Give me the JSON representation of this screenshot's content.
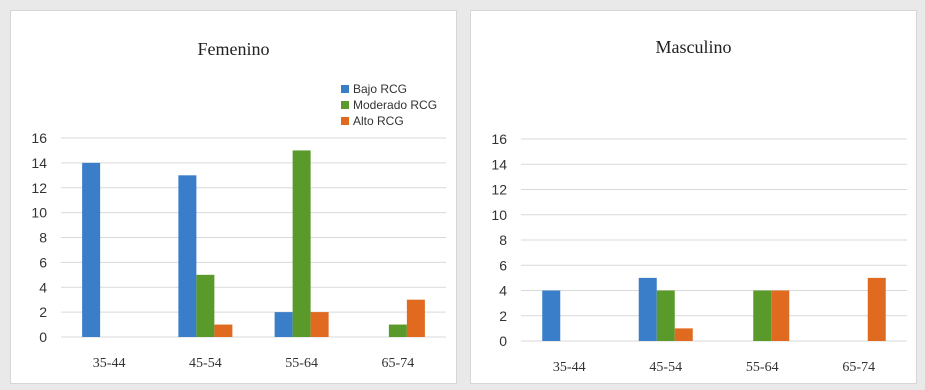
{
  "colors": {
    "bajo": "#3a7dc9",
    "moderado": "#5a9a2a",
    "alto": "#e06a1f",
    "grid": "#d9d9d9"
  },
  "chart_data": [
    {
      "type": "bar",
      "title": "Femenino",
      "categories": [
        "35-44",
        "45-54",
        "55-64",
        "65-74"
      ],
      "ylim": [
        0,
        16
      ],
      "yticks": [
        0,
        2,
        4,
        6,
        8,
        10,
        12,
        14,
        16
      ],
      "grid": true,
      "legend": "top-right",
      "series": [
        {
          "name": "Bajo RCG",
          "color": "#3a7dc9",
          "values": [
            14,
            13,
            2,
            0
          ]
        },
        {
          "name": "Moderado RCG",
          "color": "#5a9a2a",
          "values": [
            0,
            5,
            15,
            1
          ]
        },
        {
          "name": "Alto RCG",
          "color": "#e06a1f",
          "values": [
            0,
            1,
            2,
            3
          ]
        }
      ]
    },
    {
      "type": "bar",
      "title": "Masculino",
      "categories": [
        "35-44",
        "45-54",
        "55-64",
        "65-74"
      ],
      "ylim": [
        0,
        16
      ],
      "yticks": [
        0,
        2,
        4,
        6,
        8,
        10,
        12,
        14,
        16
      ],
      "grid": true,
      "legend": "none",
      "series": [
        {
          "name": "Bajo RCG",
          "color": "#3a7dc9",
          "values": [
            4,
            5,
            0,
            0
          ]
        },
        {
          "name": "Moderado RCG",
          "color": "#5a9a2a",
          "values": [
            0,
            4,
            4,
            0
          ]
        },
        {
          "name": "Alto RCG",
          "color": "#e06a1f",
          "values": [
            0,
            1,
            4,
            5
          ]
        }
      ]
    }
  ]
}
